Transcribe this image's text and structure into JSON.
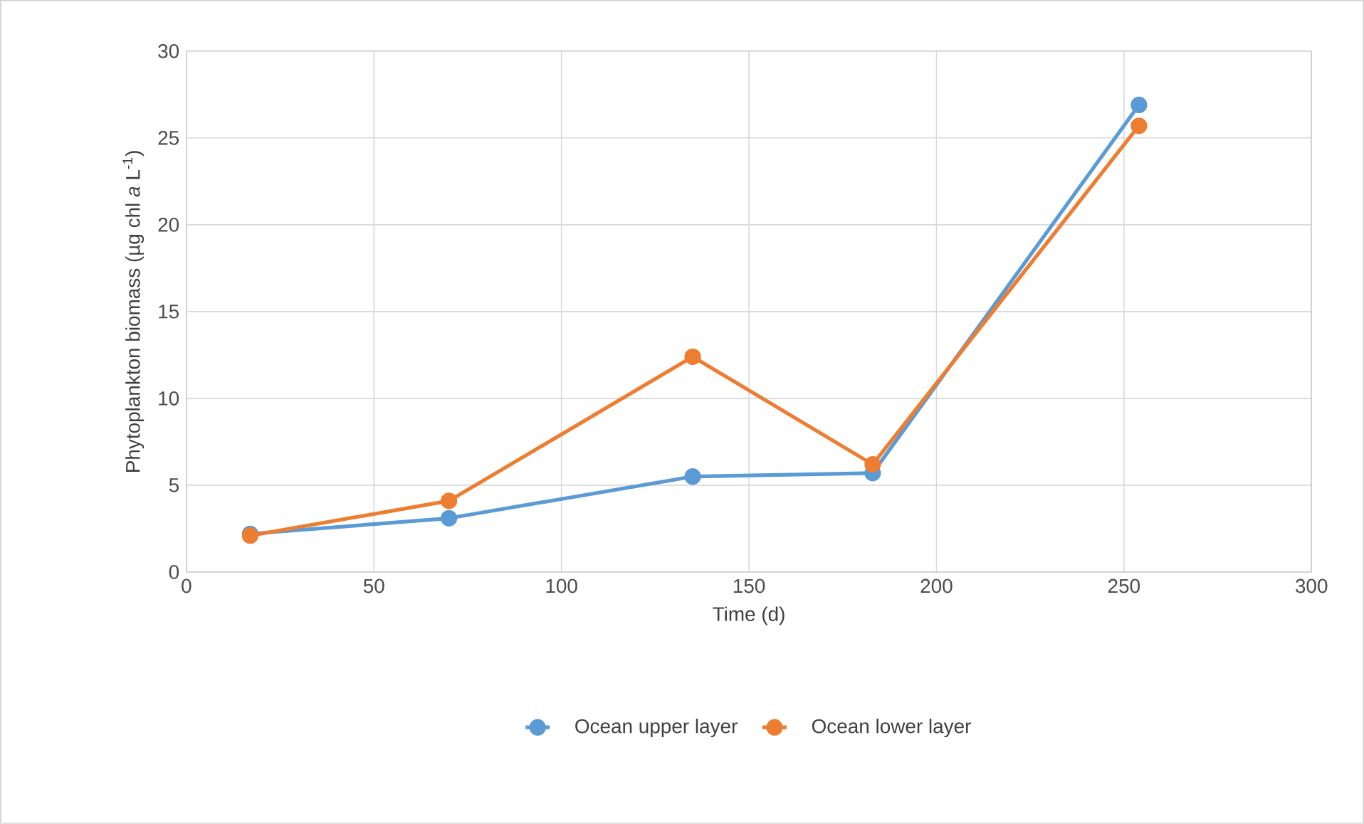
{
  "chart_data": {
    "type": "line",
    "xlabel": "Time (d)",
    "ylabel": "Phytoplankton biomass (µg chl *a* L$^{-1}$)",
    "x": [
      17,
      70,
      135,
      183,
      254
    ],
    "series": [
      {
        "name": "Ocean upper layer",
        "color": "#5b9bd5",
        "values": [
          2.2,
          3.1,
          5.5,
          5.7,
          26.9
        ]
      },
      {
        "name": "Ocean lower layer",
        "color": "#ed7d31",
        "values": [
          2.1,
          4.1,
          12.4,
          6.2,
          25.7
        ]
      }
    ],
    "xlim": [
      0,
      300
    ],
    "xticks": [
      0,
      50,
      100,
      150,
      200,
      250,
      300
    ],
    "ylim": [
      0,
      30
    ],
    "yticks": [
      0,
      5,
      10,
      15,
      20,
      25,
      30
    ],
    "grid": true,
    "legend": "bottom",
    "marker": "circle",
    "line_style": "solid"
  }
}
